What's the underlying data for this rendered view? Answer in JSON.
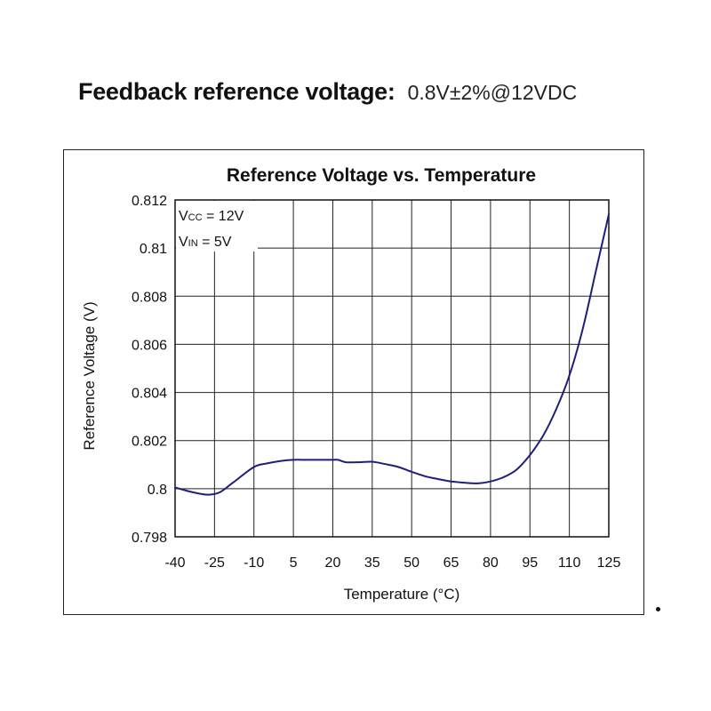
{
  "heading": {
    "label": "Feedback reference voltage:",
    "spec": "0.8V±2%@12VDC"
  },
  "chart_data": {
    "type": "line",
    "title": "Reference Voltage vs. Temperature",
    "xlabel": "Temperature (°C)",
    "ylabel": "Reference Voltage (V)",
    "x_ticks": [
      "-40",
      "-25",
      "-10",
      "5",
      "20",
      "35",
      "50",
      "65",
      "80",
      "95",
      "110",
      "125"
    ],
    "y_ticks": [
      "0.812",
      "0.81",
      "0.808",
      "0.806",
      "0.804",
      "0.802",
      "0.8",
      "0.798"
    ],
    "xlim": [
      -40,
      125
    ],
    "ylim": [
      0.798,
      0.812
    ],
    "grid": true,
    "annotations": [
      {
        "name": "vcc",
        "sym": "V",
        "sub": "CC",
        "rest": " = 12V"
      },
      {
        "name": "vin",
        "sym": "V",
        "sub": "IN",
        "rest": " = 5V"
      }
    ],
    "series": [
      {
        "name": "Reference Voltage",
        "color": "#1f1f7a",
        "x": [
          -40,
          -35,
          -30,
          -27,
          -23,
          -18,
          -10,
          -5,
          0,
          5,
          10,
          15,
          20,
          22,
          25,
          30,
          35,
          40,
          45,
          50,
          55,
          60,
          65,
          70,
          75,
          80,
          85,
          90,
          95,
          100,
          105,
          110,
          115,
          120,
          125
        ],
        "y": [
          0.80005,
          0.7999,
          0.79978,
          0.79975,
          0.79985,
          0.80025,
          0.8009,
          0.80105,
          0.80115,
          0.8012,
          0.8012,
          0.8012,
          0.8012,
          0.8012,
          0.8011,
          0.8011,
          0.80112,
          0.80102,
          0.8009,
          0.8007,
          0.80052,
          0.8004,
          0.8003,
          0.80025,
          0.80022,
          0.8003,
          0.80048,
          0.8008,
          0.8014,
          0.8022,
          0.8033,
          0.8047,
          0.8066,
          0.809,
          0.8114
        ]
      }
    ]
  }
}
